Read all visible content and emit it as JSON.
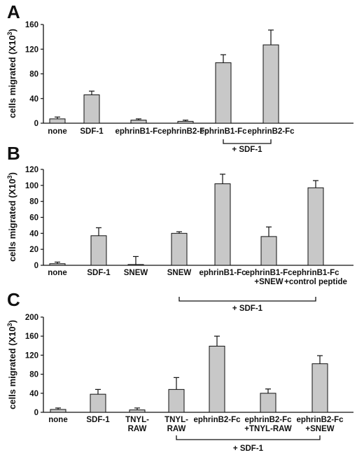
{
  "chart_data": [
    {
      "panel_label": "A",
      "type": "bar",
      "ylabel": "cells migrated (X10",
      "ylabel_sup": "3",
      "ylabel_close": ")",
      "ylim": [
        0,
        160
      ],
      "yticks": [
        0,
        40,
        80,
        120,
        160
      ],
      "categories": [
        [
          "none"
        ],
        [
          "SDF-1"
        ],
        [
          "ephrinB1-Fc"
        ],
        [
          "ephrinB2-Fc"
        ],
        [
          "ephrinB1-Fc"
        ],
        [
          "ephrinB2-Fc"
        ]
      ],
      "values": [
        7,
        46,
        5,
        3,
        98,
        127
      ],
      "errors": [
        3,
        6,
        2,
        2,
        13,
        24
      ],
      "group_bracket": {
        "label": "+ SDF-1",
        "from": 4,
        "to": 5
      }
    },
    {
      "panel_label": "B",
      "type": "bar",
      "ylabel": "cells migrated (X10",
      "ylabel_sup": "3",
      "ylabel_close": ")",
      "ylim": [
        0,
        120
      ],
      "yticks": [
        0,
        20,
        40,
        60,
        80,
        100,
        120
      ],
      "categories": [
        [
          "none"
        ],
        [
          "SDF-1"
        ],
        [
          "SNEW"
        ],
        [
          "SNEW"
        ],
        [
          "ephrinB1-Fc"
        ],
        [
          "ephrinB1-Fc",
          "+SNEW"
        ],
        [
          "ephrinB1-Fc",
          "+control peptide"
        ]
      ],
      "values": [
        2,
        37,
        1,
        40,
        102,
        36,
        97
      ],
      "errors": [
        2,
        10,
        10,
        2,
        12,
        12,
        9
      ],
      "group_bracket": {
        "label": "+ SDF-1",
        "from": 3,
        "to": 6
      }
    },
    {
      "panel_label": "C",
      "type": "bar",
      "ylabel": "cells migrated (X10",
      "ylabel_sup": "3",
      "ylabel_close": ")",
      "ylim": [
        0,
        200
      ],
      "yticks": [
        0,
        40,
        80,
        120,
        160,
        200
      ],
      "categories": [
        [
          "none"
        ],
        [
          "SDF-1"
        ],
        [
          "TNYL-",
          "RAW"
        ],
        [
          "TNYL-",
          "RAW"
        ],
        [
          "ephrinB2-Fc"
        ],
        [
          "ephrinB2-Fc",
          "+TNYL-RAW"
        ],
        [
          "ephrinB2-Fc",
          "+SNEW"
        ]
      ],
      "values": [
        6,
        38,
        5,
        48,
        139,
        40,
        102
      ],
      "errors": [
        3,
        10,
        4,
        25,
        21,
        9,
        17
      ],
      "group_bracket": {
        "label": "+ SDF-1",
        "from": 3,
        "to": 6
      }
    }
  ],
  "colors": {
    "bar_fill": "#c8c8c8",
    "bar_stroke": "#111111",
    "axis": "#111111"
  }
}
